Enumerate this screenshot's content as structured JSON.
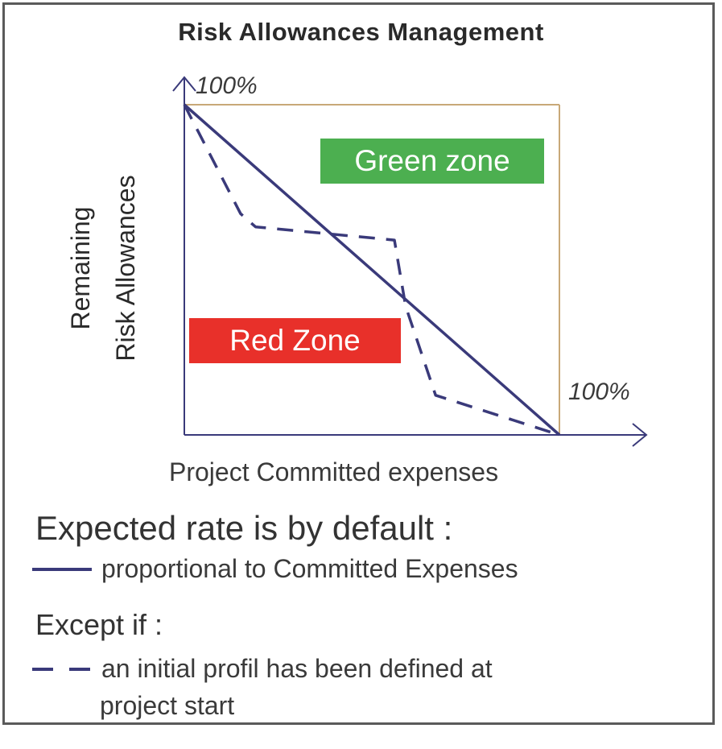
{
  "title": "Risk Allowances  Management",
  "colors": {
    "axis": "#3a3a7a",
    "boundary": "#c8a878",
    "green_zone": "#4caf50",
    "red_zone": "#e8302a"
  },
  "zones": {
    "green": "Green zone",
    "red": "Red Zone"
  },
  "axes": {
    "y_label_line1": "Remaining",
    "y_label_line2": "Risk Allowances",
    "x_label": "Project Committed  expenses",
    "y_max_tick": "100%",
    "x_max_tick": "100%"
  },
  "chart_data": {
    "type": "line",
    "xlim": [
      0,
      100
    ],
    "ylim": [
      0,
      100
    ],
    "series": [
      {
        "style": "solid",
        "x": [
          0,
          100
        ],
        "y": [
          100,
          0
        ]
      },
      {
        "style": "dashed",
        "x": [
          0,
          15,
          19,
          56,
          59,
          67,
          100
        ],
        "y": [
          100,
          67,
          63,
          59,
          39,
          12,
          0
        ]
      }
    ]
  },
  "legend": {
    "heading": "Expected rate is by default :",
    "solid_label": "proportional to Committed  Expenses",
    "except_heading": "Except if :",
    "dashed_label": "an initial profil has been defined at",
    "dashed_label_cont": "project start"
  }
}
